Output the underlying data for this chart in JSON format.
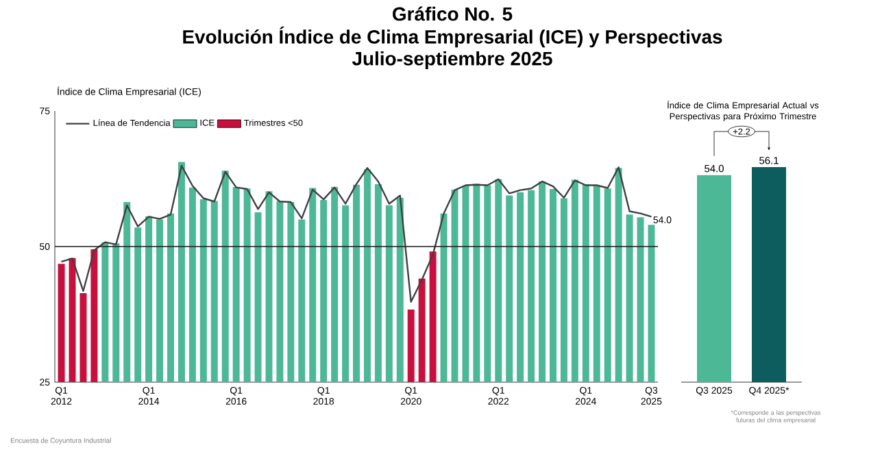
{
  "chart_data": [
    {
      "type": "bar",
      "title": "Gráfico No. 5",
      "subtitle": "Evolución Índice de Clima Empresarial (ICE) y Perspectivas",
      "ylabel": "Índice de Clima Empresarial (ICE)",
      "annotations": [
        "Julio-septiembre 2025",
        "Encuesta de Coyuntura Industrial"
      ],
      "categories": [
        "Q1 2012",
        null,
        null,
        null,
        null,
        null,
        null,
        null,
        "Q1 2014",
        null,
        null,
        null,
        null,
        null,
        null,
        null,
        "Q1 2016",
        null,
        null,
        null,
        null,
        null,
        null,
        null,
        "Q1 2018",
        null,
        null,
        null,
        null,
        null,
        null,
        null,
        "Q1 2020",
        null,
        null,
        null,
        null,
        null,
        null,
        null,
        "Q1 2022",
        null,
        null,
        null,
        null,
        null,
        null,
        null,
        "Q1 2024",
        null,
        null,
        null,
        null,
        null,
        "Q3 2025"
      ],
      "ylim": [
        25,
        75
      ],
      "yticks": [
        25,
        50,
        75
      ],
      "legend": "top left",
      "ref_lines": [
        {
          "axis": "y",
          "value": 50,
          "color": "#1a1a1a"
        }
      ],
      "series": [
        {
          "name": "Línea de Tendencia",
          "type": "line",
          "color": "#404040",
          "values": [
            47.2,
            47.8,
            41.8,
            49.3,
            50.8,
            50.4,
            57.6,
            53.7,
            55.5,
            55.1,
            55.9,
            64.9,
            61.2,
            58.9,
            58.3,
            63.8,
            60.9,
            60.6,
            56.9,
            60.0,
            58.3,
            58.2,
            55.2,
            60.5,
            58.7,
            60.9,
            57.9,
            61.5,
            64.5,
            62.0,
            57.9,
            59.4,
            39.8,
            43.9,
            48.5,
            56.1,
            60.4,
            61.3,
            61.4,
            61.3,
            62.4,
            59.8,
            60.4,
            60.7,
            62.0,
            61.1,
            59.0,
            62.2,
            61.3,
            61.3,
            60.8,
            64.6,
            56.5,
            56.1,
            55.5
          ]
        },
        {
          "name": "ICE",
          "color": "#4db896",
          "values": [
            null,
            null,
            null,
            null,
            50.8,
            50.6,
            58.2,
            53.5,
            55.6,
            55.0,
            56.1,
            65.6,
            60.9,
            58.7,
            58.4,
            64.0,
            61.0,
            60.7,
            56.3,
            60.2,
            58.4,
            58.2,
            55.0,
            60.8,
            58.6,
            61.0,
            57.6,
            61.4,
            64.2,
            61.5,
            57.6,
            59.0,
            null,
            null,
            null,
            56.1,
            60.5,
            61.2,
            61.6,
            61.3,
            62.4,
            59.4,
            60.0,
            60.4,
            62.0,
            60.6,
            58.9,
            62.3,
            61.5,
            61.2,
            60.7,
            64.5,
            55.9,
            55.4,
            54.0
          ],
          "value_labels": [
            null,
            null,
            null,
            null,
            null,
            null,
            null,
            null,
            null,
            null,
            null,
            null,
            null,
            null,
            null,
            null,
            null,
            null,
            null,
            null,
            null,
            null,
            null,
            null,
            null,
            null,
            null,
            null,
            null,
            null,
            null,
            null,
            null,
            null,
            null,
            null,
            null,
            null,
            null,
            null,
            null,
            null,
            null,
            null,
            null,
            null,
            null,
            null,
            null,
            null,
            null,
            null,
            null,
            null,
            "54.0"
          ]
        },
        {
          "name": "Trimestres <50",
          "color": "#c8103e",
          "values": [
            46.8,
            47.9,
            41.4,
            49.5,
            null,
            null,
            null,
            null,
            null,
            null,
            null,
            null,
            null,
            null,
            null,
            null,
            null,
            null,
            null,
            null,
            null,
            null,
            null,
            null,
            null,
            null,
            null,
            null,
            null,
            null,
            null,
            null,
            38.4,
            44.1,
            49.1,
            null,
            null,
            null,
            null,
            null,
            null,
            null,
            null,
            null,
            null,
            null,
            null,
            null,
            null,
            null,
            null,
            null,
            null,
            null,
            null
          ]
        }
      ]
    },
    {
      "type": "bar",
      "title": "Índice de Clima Empresarial Actual vs Perspectivas para Próximo Trimestre",
      "categories": [
        "Q3 2025",
        "Q4 2025*"
      ],
      "values": [
        54.0,
        56.1
      ],
      "colors": [
        "#4db896",
        "#0d5c5e"
      ],
      "value_labels": [
        "54.0",
        "56.1"
      ],
      "tick_labels": "x",
      "annotations": [
        "+2.2",
        "*Corresponde a las perspectivas futuras del clima empresarial"
      ]
    }
  ]
}
